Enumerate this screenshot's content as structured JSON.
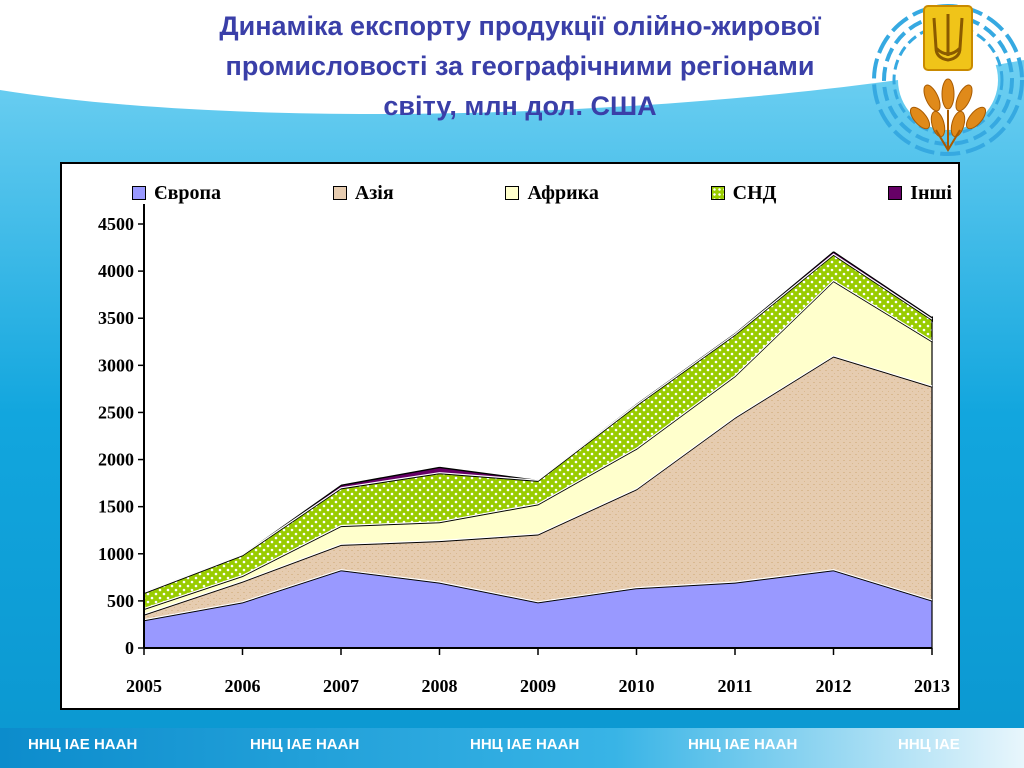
{
  "slide": {
    "title_line1": "Динаміка експорту продукції олійно-жирової",
    "title_line2": "промисловості за географічними регіонами",
    "title_line3": "світу, млн дол. США",
    "footer_items": [
      "ННЦ ІАЕ  НААН",
      "ННЦ ІАЕ  НААН",
      "ННЦ ІАЕ  НААН",
      "ННЦ ІАЕ  НААН",
      "ННЦ ІАЕ"
    ]
  },
  "colors": {
    "title": "#3a3fa8",
    "background_blue": "#12a6de",
    "europe": "#9999ff",
    "asia": "#e6ccb0",
    "africa": "#ffffcc",
    "cis": "#99cc00",
    "other": "#660066"
  },
  "emblem_icon": "trident-wheat-emblem",
  "chart_data": {
    "type": "area",
    "stacked": true,
    "title": "",
    "xlabel": "",
    "ylabel": "",
    "x": [
      "2005",
      "2006",
      "2007",
      "2008",
      "2009",
      "2010",
      "2011",
      "2012",
      "2013"
    ],
    "ylim": [
      0,
      4500
    ],
    "yticks": [
      0,
      500,
      1000,
      1500,
      2000,
      2500,
      3000,
      3500,
      4000,
      4500
    ],
    "legend_position": "top",
    "grid": false,
    "series": [
      {
        "name": "Європа",
        "values": [
          290,
          480,
          820,
          690,
          480,
          630,
          690,
          820,
          500
        ]
      },
      {
        "name": "Азія",
        "values": [
          60,
          220,
          270,
          440,
          720,
          1050,
          1750,
          2270,
          2270
        ]
      },
      {
        "name": "Африка",
        "values": [
          60,
          60,
          200,
          200,
          320,
          430,
          440,
          800,
          480
        ]
      },
      {
        "name": "СНД",
        "values": [
          170,
          220,
          400,
          520,
          250,
          460,
          440,
          280,
          230
        ]
      },
      {
        "name": "Інші",
        "values": [
          10,
          10,
          40,
          70,
          10,
          20,
          20,
          40,
          30
        ]
      }
    ]
  }
}
